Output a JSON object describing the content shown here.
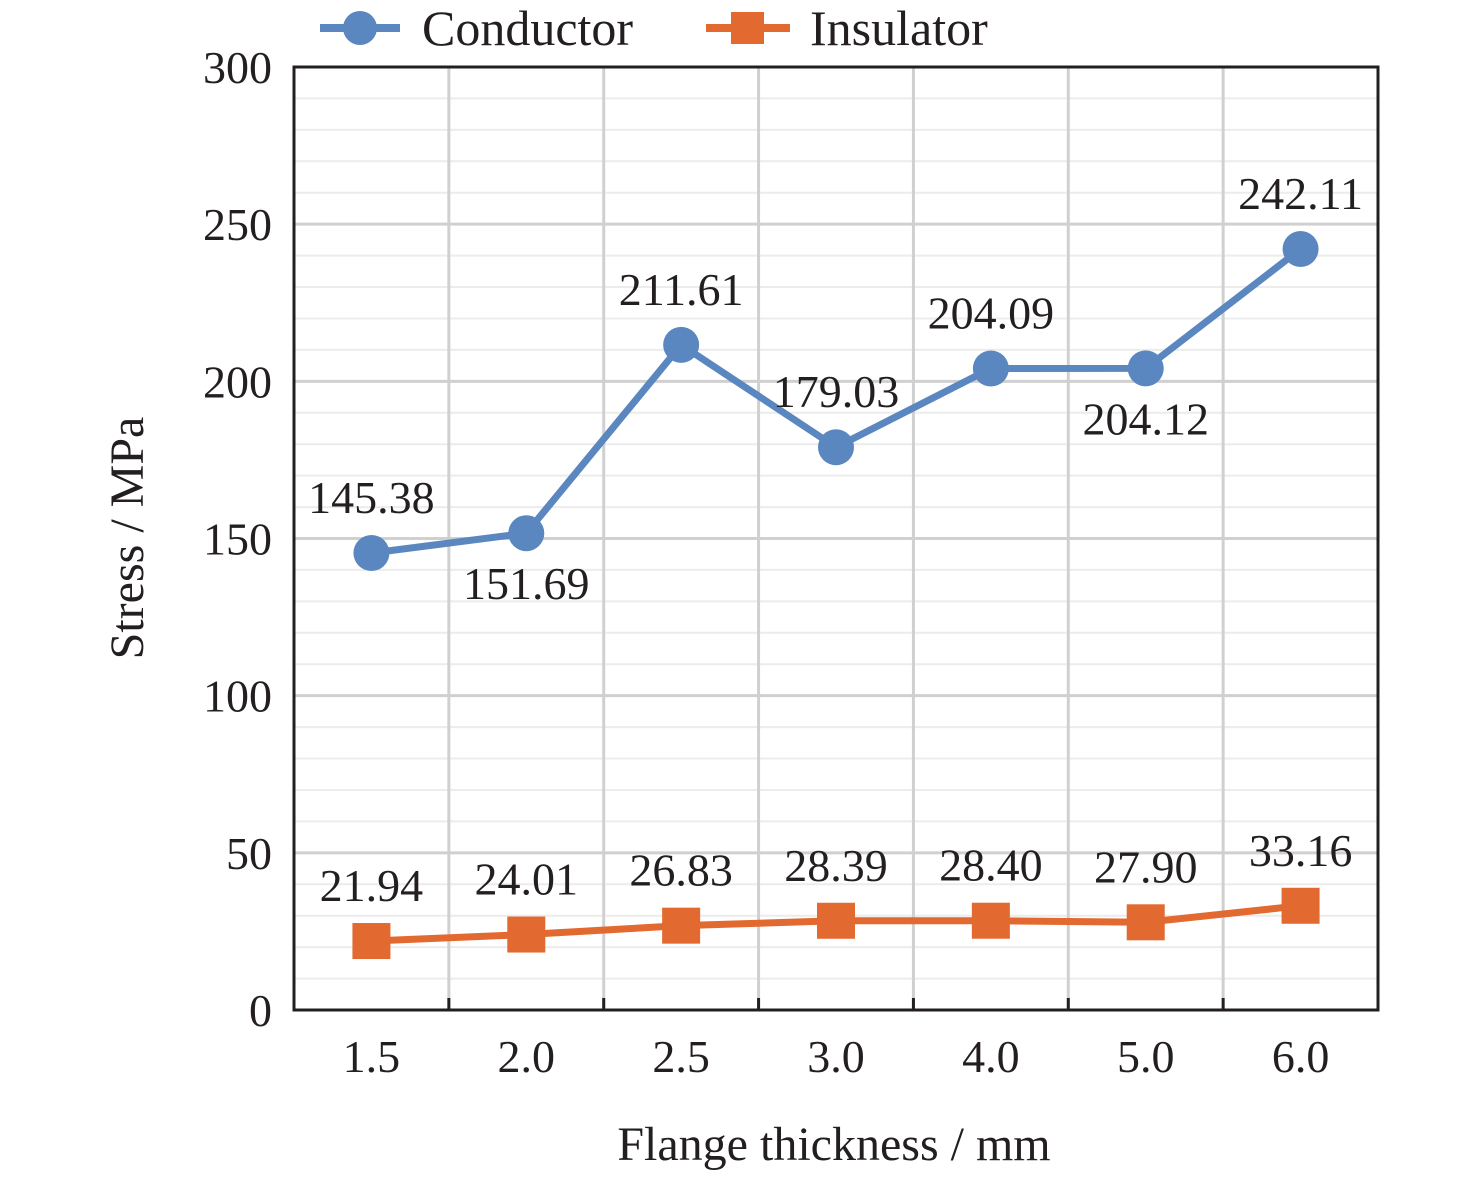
{
  "chart_data": {
    "type": "line",
    "categories": [
      "1.5",
      "2.0",
      "2.5",
      "3.0",
      "4.0",
      "5.0",
      "6.0"
    ],
    "series": [
      {
        "name": "Conductor",
        "color": "#5b87c0",
        "marker": "circle",
        "values": [
          145.38,
          151.69,
          211.61,
          179.03,
          204.09,
          204.12,
          242.11
        ],
        "labels": [
          "145.38",
          "151.69",
          "211.61",
          "179.03",
          "204.09",
          "204.12",
          "242.11"
        ]
      },
      {
        "name": "Insulator",
        "color": "#e2692f",
        "marker": "square",
        "values": [
          21.94,
          24.01,
          26.83,
          28.39,
          28.4,
          27.9,
          33.16
        ],
        "labels": [
          "21.94",
          "24.01",
          "26.83",
          "28.39",
          "28.40",
          "27.90",
          "33.16"
        ]
      }
    ],
    "xlabel": "Flange thickness / mm",
    "ylabel": "Stress / MPa",
    "ylim": [
      0,
      300
    ],
    "yticks": [
      "0",
      "50",
      "100",
      "150",
      "200",
      "250",
      "300"
    ],
    "grid": true,
    "legend_position": "top"
  }
}
